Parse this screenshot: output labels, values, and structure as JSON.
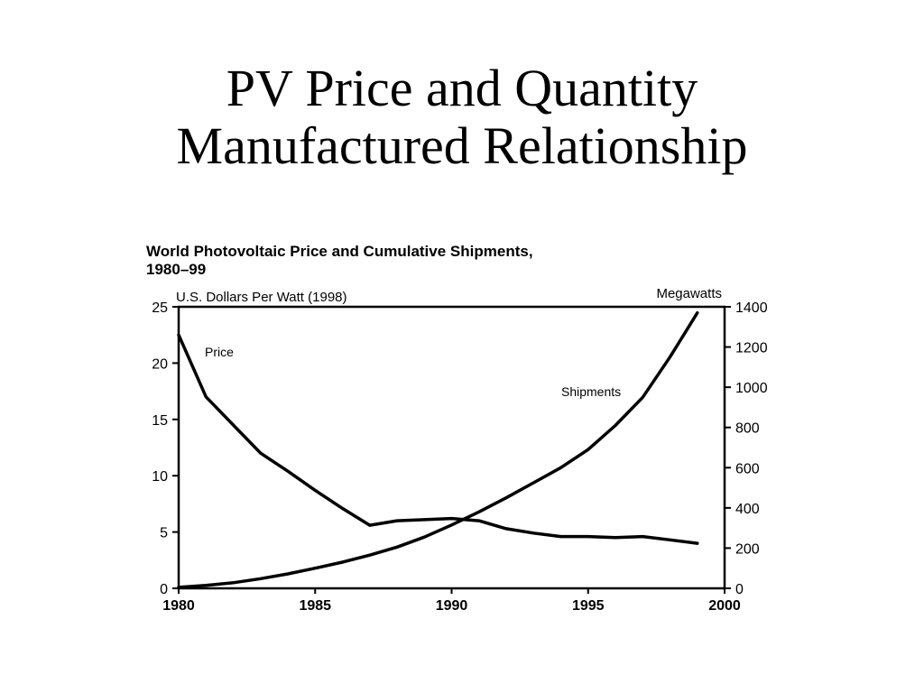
{
  "slide": {
    "title_line1": "PV Price and Quantity",
    "title_line2": "Manufactured Relationship"
  },
  "chart_data": {
    "type": "line",
    "title": "World Photovoltaic Price and Cumulative Shipments,",
    "subtitle": "1980–99",
    "ylabel_left": "U.S. Dollars Per Watt (1998)",
    "ylabel_right": "Megawatts",
    "xlim": [
      1980,
      2000
    ],
    "ylim_left": [
      0,
      25
    ],
    "ylim_right": [
      0,
      1400
    ],
    "x_ticks": [
      "1980",
      "1985",
      "1990",
      "1995",
      "2000"
    ],
    "y_ticks_left": [
      "0",
      "5",
      "10",
      "15",
      "20",
      "25"
    ],
    "y_ticks_right": [
      "0",
      "200",
      "400",
      "600",
      "800",
      "1000",
      "1200",
      "1400"
    ],
    "grid": false,
    "series": [
      {
        "name": "Price",
        "axis": "left",
        "x": [
          1980,
          1981,
          1982,
          1983,
          1984,
          1985,
          1986,
          1987,
          1988,
          1989,
          1990,
          1991,
          1992,
          1993,
          1994,
          1995,
          1996,
          1997,
          1998,
          1999
        ],
        "values": [
          22.5,
          17.0,
          14.5,
          12.0,
          10.4,
          8.7,
          7.1,
          5.6,
          6.0,
          6.1,
          6.2,
          6.0,
          5.3,
          4.9,
          4.6,
          4.6,
          4.5,
          4.6,
          4.3,
          4.0
        ]
      },
      {
        "name": "Shipments",
        "axis": "right",
        "x": [
          1980,
          1981,
          1982,
          1983,
          1984,
          1985,
          1986,
          1987,
          1988,
          1989,
          1990,
          1991,
          1992,
          1993,
          1994,
          1995,
          1996,
          1997,
          1998,
          1999
        ],
        "values": [
          5,
          15,
          28,
          48,
          72,
          100,
          130,
          165,
          205,
          255,
          315,
          380,
          450,
          525,
          600,
          690,
          810,
          950,
          1150,
          1370
        ]
      }
    ]
  }
}
